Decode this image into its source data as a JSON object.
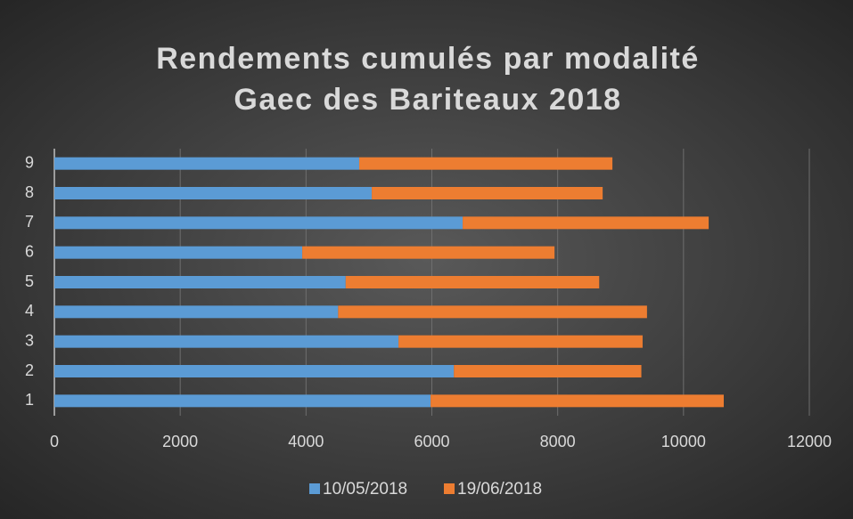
{
  "chart_data": {
    "type": "stacked-bar-horizontal",
    "title": [
      "Rendements cumulés par modalité",
      "Gaec des Bariteaux 2018"
    ],
    "categories": [
      "1",
      "2",
      "3",
      "4",
      "5",
      "6",
      "7",
      "8",
      "9"
    ],
    "series": [
      {
        "name": "10/05/2018",
        "color": "#5b9bd5",
        "values": [
          5980,
          6350,
          5470,
          4510,
          4630,
          3940,
          6490,
          5045,
          4845
        ]
      },
      {
        "name": "19/06/2018",
        "color": "#ed7d31",
        "values": [
          4660,
          2980,
          3880,
          4910,
          4030,
          4010,
          3910,
          3670,
          4025
        ]
      }
    ],
    "xlim": [
      0,
      12000
    ],
    "xticks": [
      0,
      2000,
      4000,
      6000,
      8000,
      10000,
      12000
    ],
    "grid": true,
    "legend": "bottom"
  }
}
